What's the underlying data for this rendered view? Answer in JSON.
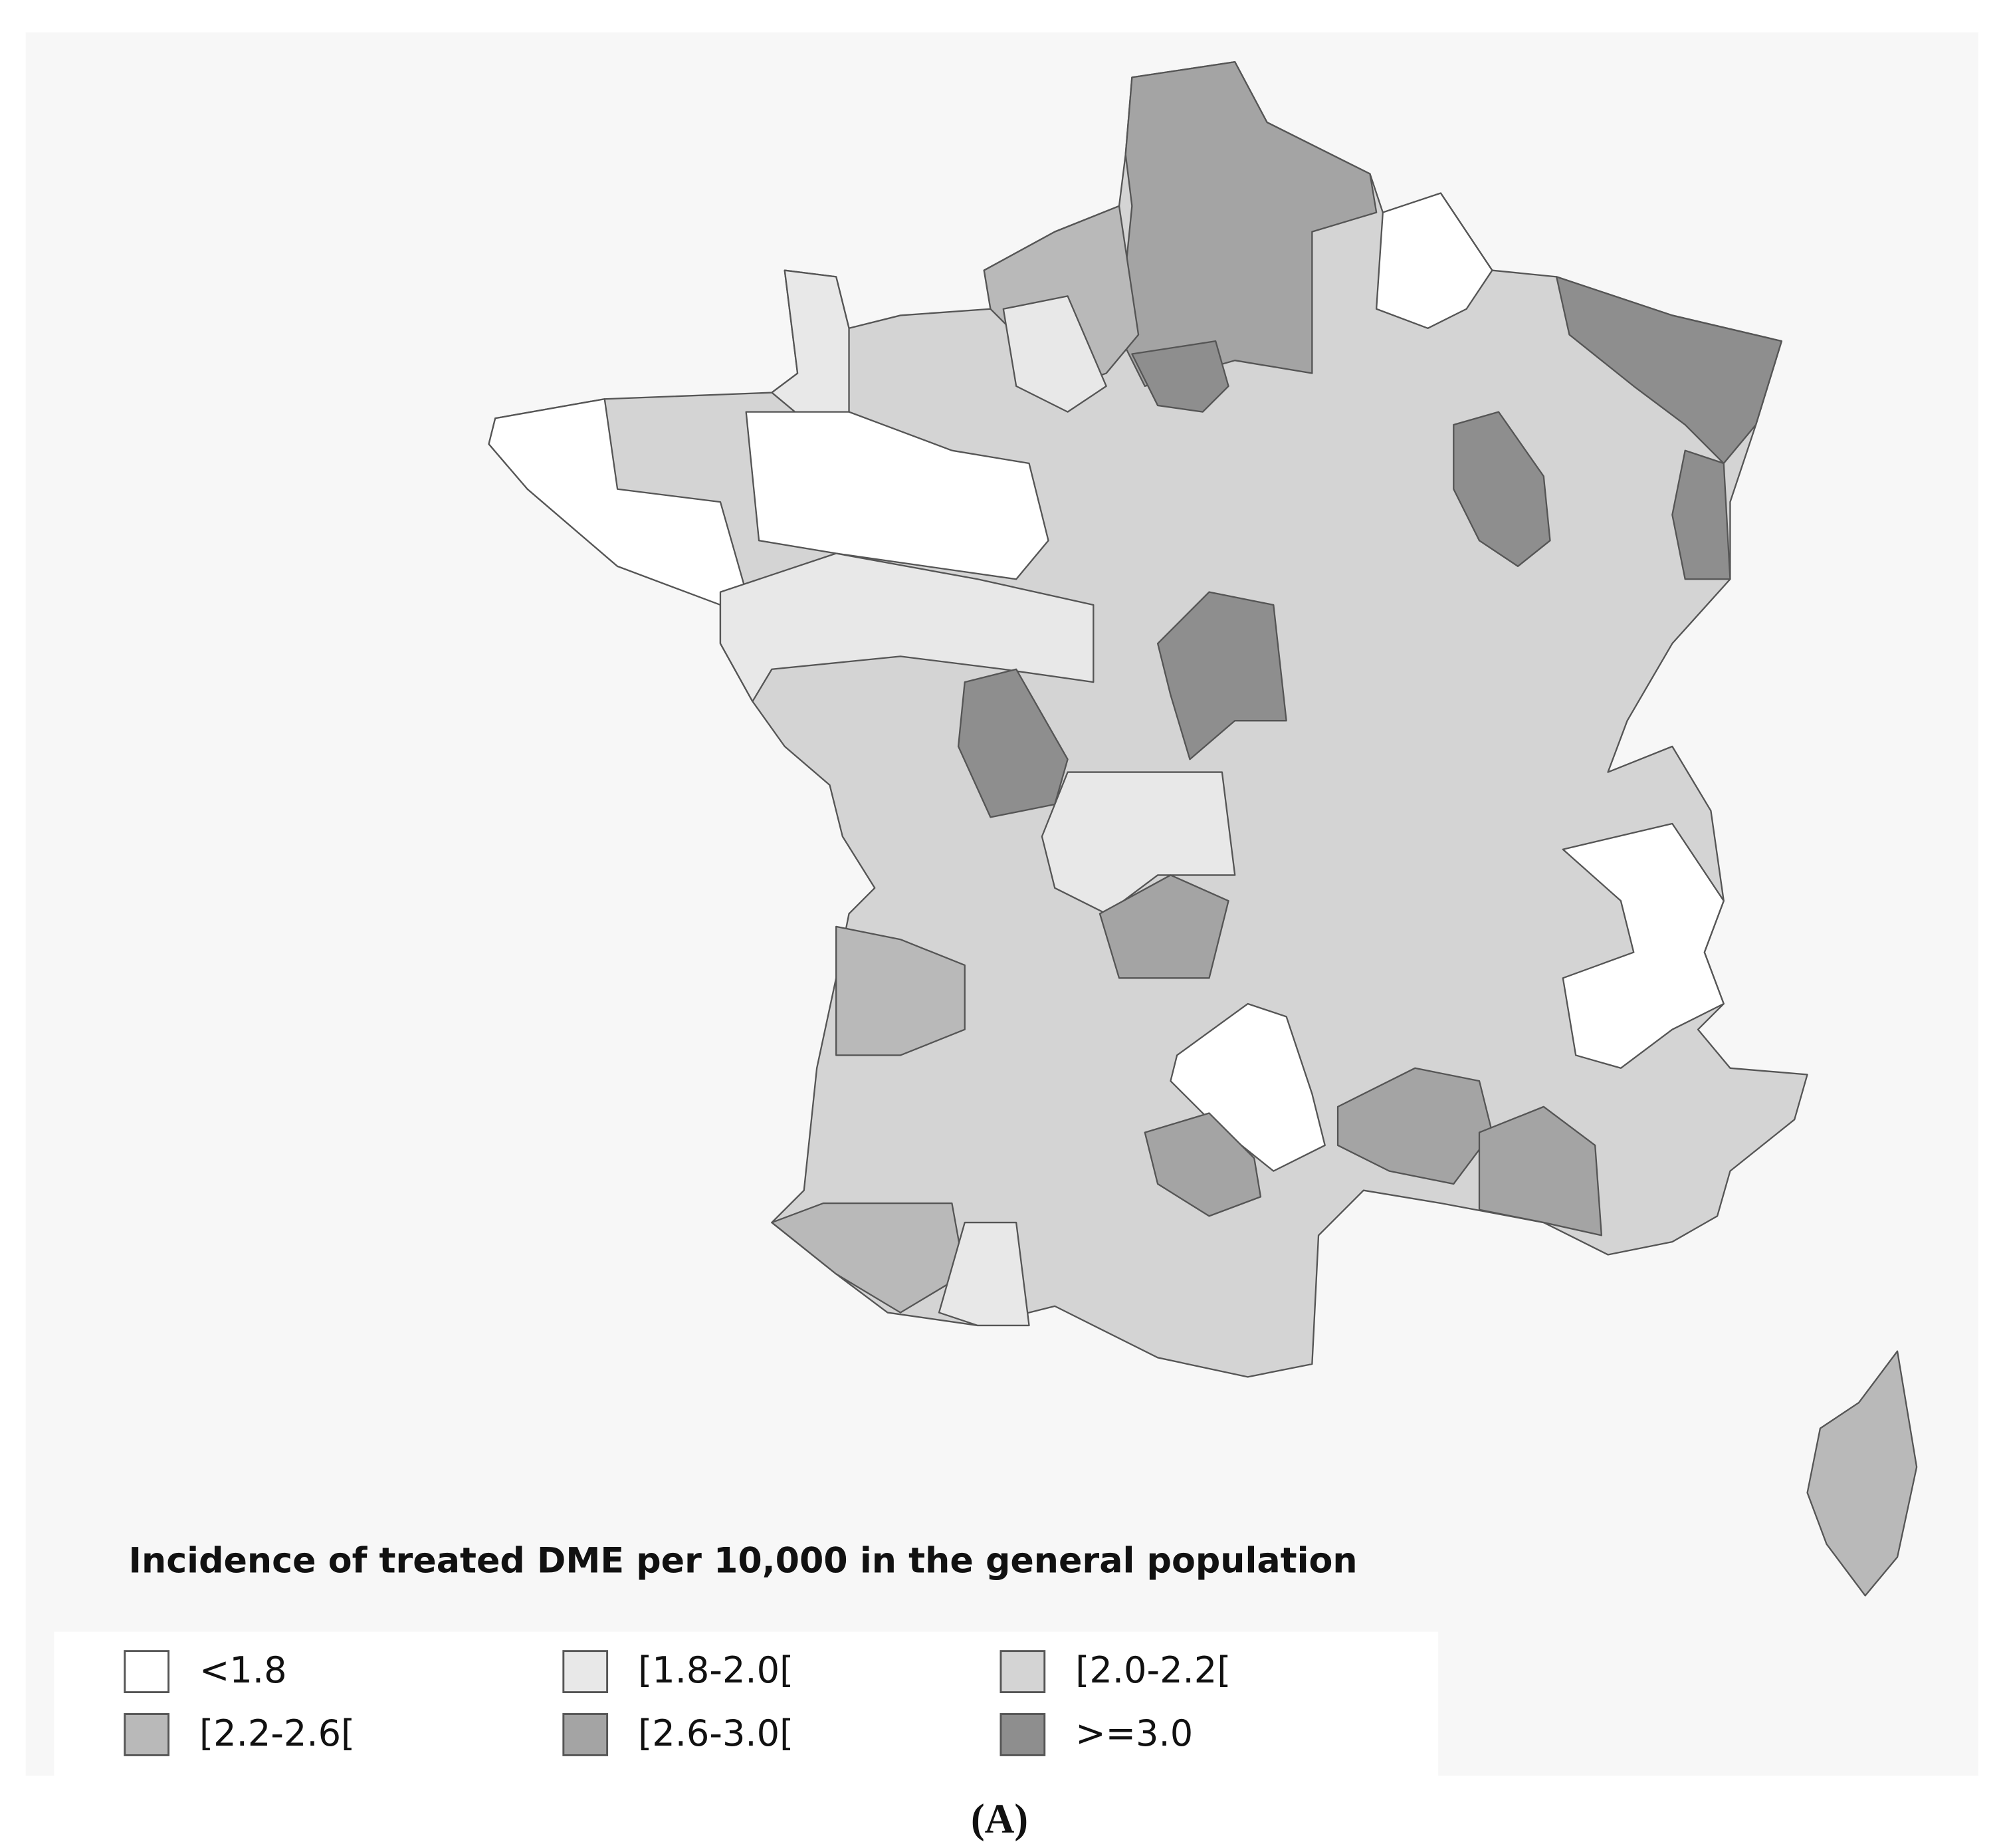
{
  "title": "Incidence of treated DME per 10,000 in the general population",
  "legend": [
    {
      "label": "<1.8",
      "color": "#ffffff"
    },
    {
      "label": "[1.8-2.0[",
      "color": "#e8e8e8"
    },
    {
      "label": "[2.0-2.2[",
      "color": "#d4d4d4"
    },
    {
      "label": "[2.2-2.6[",
      "color": "#b9b9b9"
    },
    {
      "label": "[2.6-3.0[",
      "color": "#a4a4a4"
    },
    {
      "label": ">=3.0",
      "color": "#8e8e8e"
    }
  ],
  "caption": "(A)"
}
